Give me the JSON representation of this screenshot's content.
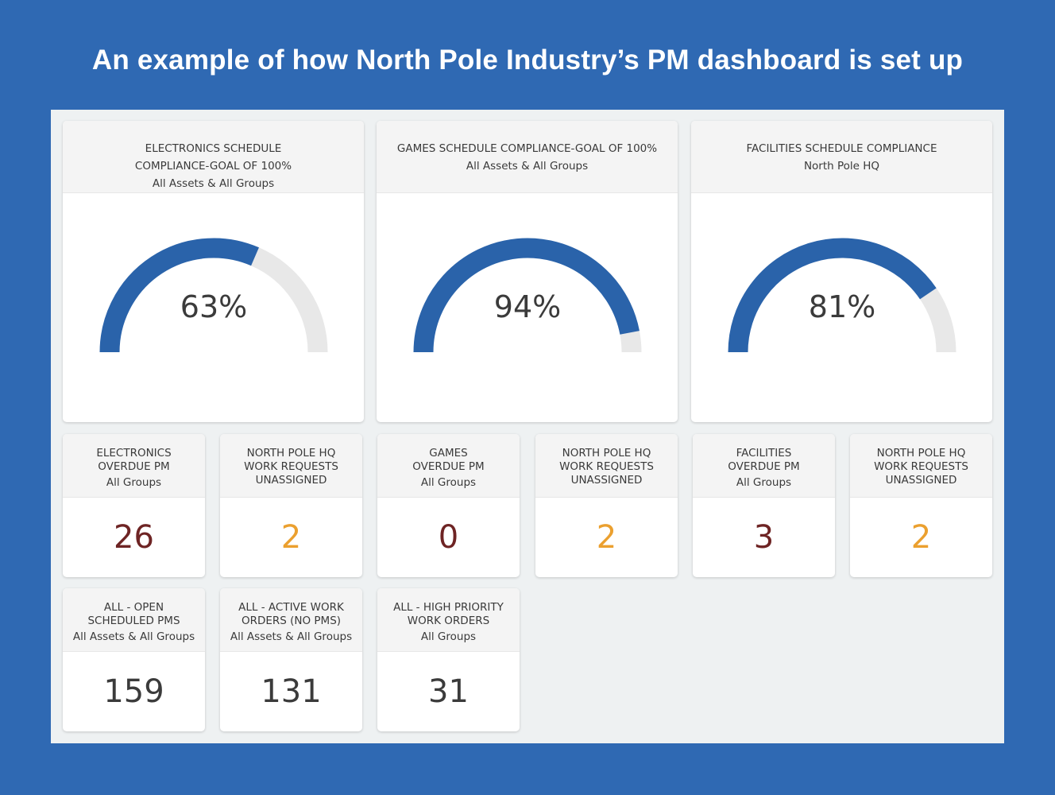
{
  "headline": "An example of how North Pole Industry’s PM dashboard is set up",
  "colors": {
    "gauge_fill": "#2a63aa",
    "gauge_track": "#e8e8e8",
    "overdue": "#6e2424",
    "unassigned": "#eba02f",
    "neutral": "#3b3b3b"
  },
  "gauges": [
    {
      "title_lines": [
        "ELECTRONICS SCHEDULE",
        "COMPLIANCE-GOAL OF 100%"
      ],
      "subtitle": "All Assets & All Groups",
      "value": 63,
      "label": "63%"
    },
    {
      "title_lines": [
        "GAMES SCHEDULE COMPLIANCE-GOAL OF 100%"
      ],
      "subtitle": "All Assets & All Groups",
      "value": 94,
      "label": "94%"
    },
    {
      "title_lines": [
        "FACILITIES SCHEDULE COMPLIANCE"
      ],
      "subtitle": "North Pole HQ",
      "value": 81,
      "label": "81%"
    }
  ],
  "tiles_row1": [
    {
      "title_lines": [
        "ELECTRONICS",
        "OVERDUE PM"
      ],
      "subtitle": "All Groups",
      "value": "26",
      "tone": "red"
    },
    {
      "title_lines": [
        "NORTH POLE HQ",
        "WORK REQUESTS",
        "UNASSIGNED"
      ],
      "subtitle": "",
      "value": "2",
      "tone": "orange"
    },
    {
      "title_lines": [
        "GAMES",
        "OVERDUE PM"
      ],
      "subtitle": "All Groups",
      "value": "0",
      "tone": "red"
    },
    {
      "title_lines": [
        "NORTH POLE HQ",
        "WORK REQUESTS",
        "UNASSIGNED"
      ],
      "subtitle": "",
      "value": "2",
      "tone": "orange"
    },
    {
      "title_lines": [
        "FACILITIES",
        "OVERDUE PM"
      ],
      "subtitle": "All Groups",
      "value": "3",
      "tone": "red"
    },
    {
      "title_lines": [
        "NORTH POLE HQ",
        "WORK REQUESTS",
        "UNASSIGNED"
      ],
      "subtitle": "",
      "value": "2",
      "tone": "orange"
    }
  ],
  "tiles_row2": [
    {
      "title_lines": [
        "ALL - OPEN",
        "SCHEDULED PMS"
      ],
      "subtitle": "All Assets & All Groups",
      "value": "159",
      "tone": "neutral"
    },
    {
      "title_lines": [
        "ALL - ACTIVE WORK",
        "ORDERS (NO PMS)"
      ],
      "subtitle": "All Assets & All Groups",
      "value": "131",
      "tone": "neutral"
    },
    {
      "title_lines": [
        "ALL - HIGH PRIORITY",
        "WORK ORDERS"
      ],
      "subtitle": "All Groups",
      "value": "31",
      "tone": "neutral"
    }
  ]
}
